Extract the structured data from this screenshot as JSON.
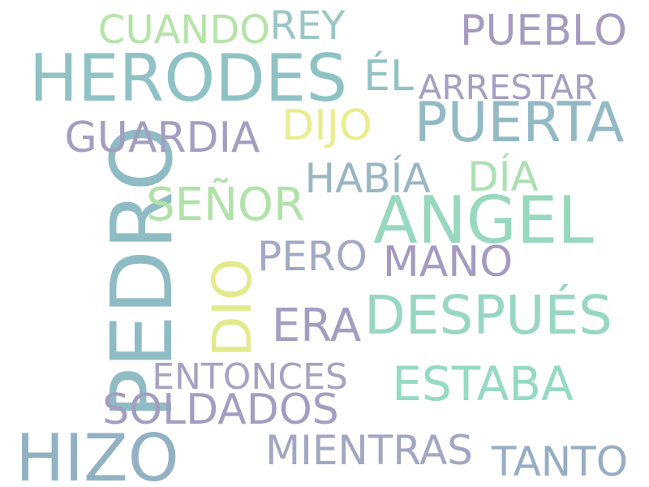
{
  "words": [
    {
      "text": "PEDRO",
      "color": "#8fbcc4"
    },
    {
      "text": "HERODES",
      "color": "#8fc2c4"
    },
    {
      "text": "HIZO",
      "color": "#92b1c3"
    },
    {
      "text": "ANGEL",
      "color": "#97d8be"
    },
    {
      "text": "PUERTA",
      "color": "#93b9c5"
    },
    {
      "text": "DESPUÉS",
      "color": "#98d7c3"
    },
    {
      "text": "ESTABA",
      "color": "#95dac3"
    },
    {
      "text": "PUEBLO",
      "color": "#a59bc0"
    },
    {
      "text": "SOLDADOS",
      "color": "#a49dc2"
    },
    {
      "text": "GUARDIA",
      "color": "#a39ec1"
    },
    {
      "text": "SEÑOR",
      "color": "#b0e2a9"
    },
    {
      "text": "ERA",
      "color": "#a59dc1"
    },
    {
      "text": "MIENTRAS",
      "color": "#a2a6c2"
    },
    {
      "text": "TANTO",
      "color": "#97adc5"
    },
    {
      "text": "HABÍA",
      "color": "#99b6c3"
    },
    {
      "text": "CUANDO",
      "color": "#b4e4a8"
    },
    {
      "text": "MANO",
      "color": "#a59ac1"
    },
    {
      "text": "PERO",
      "color": "#a2a9c3"
    },
    {
      "text": "DIO",
      "color": "#e2eb8c"
    },
    {
      "text": "DIJO",
      "color": "#e8ed8d"
    },
    {
      "text": "ENTONCES",
      "color": "#a7a2c3"
    },
    {
      "text": "DÍA",
      "color": "#ace0b2"
    },
    {
      "text": "REY",
      "color": "#9ac7c5"
    },
    {
      "text": "ÉL",
      "color": "#93c2c4"
    },
    {
      "text": "ARRESTAR",
      "color": "#a59fc1"
    }
  ]
}
